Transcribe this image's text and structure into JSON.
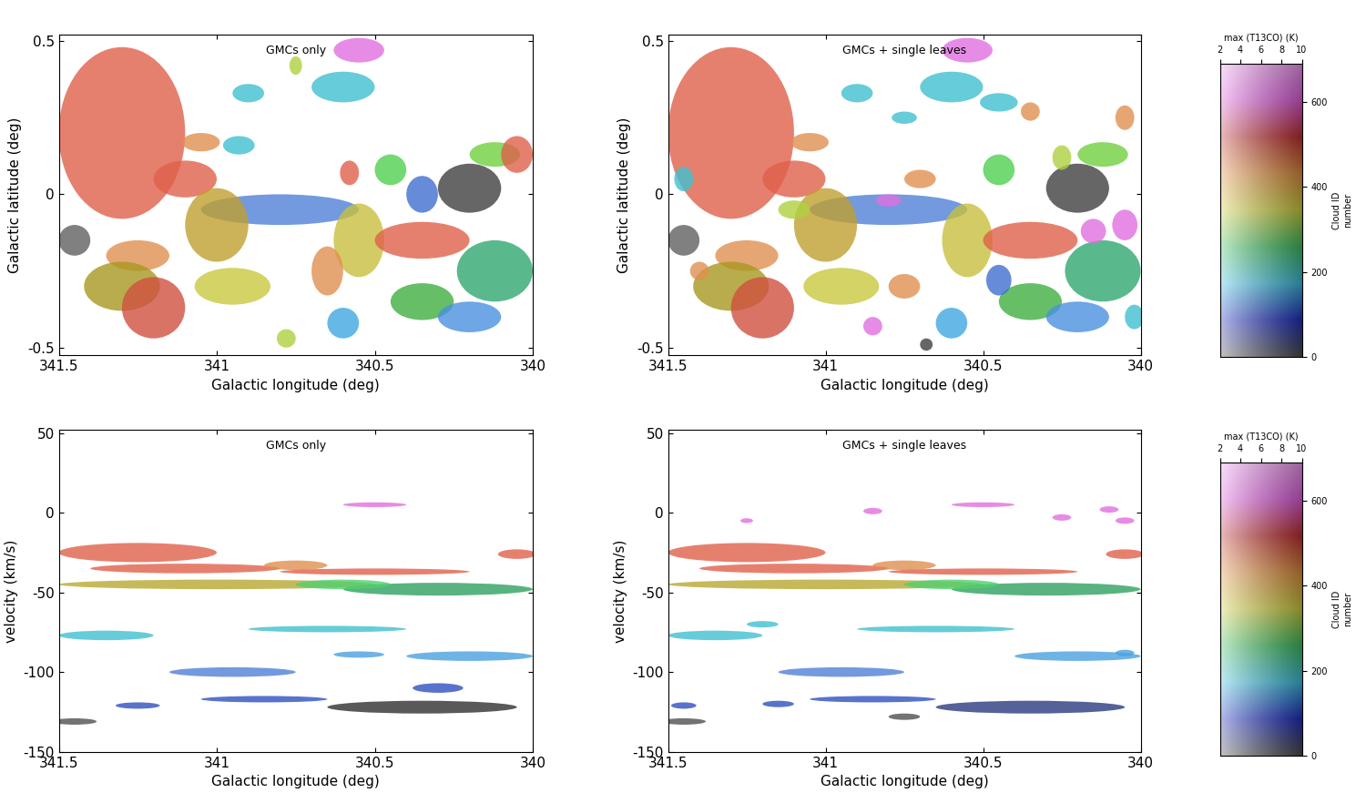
{
  "chart_data": [
    {
      "type": "region",
      "annotation": "GMCs only",
      "xlabel": "Galactic longitude (deg)",
      "ylabel": "Galactic latitude (deg)",
      "xlim": [
        341.5,
        340
      ],
      "ylim": [
        -0.525,
        0.52
      ],
      "xticks": [
        341.5,
        341,
        340.5,
        340
      ],
      "yticks": [
        -0.5,
        0,
        0.5
      ],
      "clouds": [
        {
          "x": 341.3,
          "y": 0.2,
          "dx": 0.2,
          "dy": 0.28,
          "color": "#e0604a"
        },
        {
          "x": 341.1,
          "y": 0.05,
          "dx": 0.1,
          "dy": 0.06,
          "color": "#e0604a"
        },
        {
          "x": 340.55,
          "y": 0.47,
          "dx": 0.08,
          "dy": 0.04,
          "color": "#e070e0"
        },
        {
          "x": 340.6,
          "y": 0.35,
          "dx": 0.1,
          "dy": 0.05,
          "color": "#40c0d0"
        },
        {
          "x": 340.9,
          "y": 0.33,
          "dx": 0.05,
          "dy": 0.03,
          "color": "#40c0d0"
        },
        {
          "x": 340.75,
          "y": 0.42,
          "dx": 0.02,
          "dy": 0.03,
          "color": "#b0d040"
        },
        {
          "x": 341.05,
          "y": 0.17,
          "dx": 0.06,
          "dy": 0.03,
          "color": "#e09050"
        },
        {
          "x": 340.93,
          "y": 0.16,
          "dx": 0.05,
          "dy": 0.03,
          "color": "#40c0d0"
        },
        {
          "x": 340.45,
          "y": 0.08,
          "dx": 0.05,
          "dy": 0.05,
          "color": "#50d050"
        },
        {
          "x": 340.58,
          "y": 0.07,
          "dx": 0.03,
          "dy": 0.04,
          "color": "#e0604a"
        },
        {
          "x": 340.12,
          "y": 0.13,
          "dx": 0.08,
          "dy": 0.04,
          "color": "#70d040"
        },
        {
          "x": 340.05,
          "y": 0.13,
          "dx": 0.05,
          "dy": 0.06,
          "color": "#e0604a"
        },
        {
          "x": 340.35,
          "y": 0.0,
          "dx": 0.05,
          "dy": 0.06,
          "color": "#4070d0"
        },
        {
          "x": 340.2,
          "y": 0.02,
          "dx": 0.1,
          "dy": 0.08,
          "color": "#404040"
        },
        {
          "x": 340.8,
          "y": -0.05,
          "dx": 0.25,
          "dy": 0.05,
          "color": "#5080d8"
        },
        {
          "x": 341.0,
          "y": -0.1,
          "dx": 0.1,
          "dy": 0.12,
          "color": "#c0a030"
        },
        {
          "x": 340.95,
          "y": -0.3,
          "dx": 0.12,
          "dy": 0.06,
          "color": "#c8c840"
        },
        {
          "x": 341.25,
          "y": -0.2,
          "dx": 0.1,
          "dy": 0.05,
          "color": "#e09050"
        },
        {
          "x": 341.3,
          "y": -0.3,
          "dx": 0.12,
          "dy": 0.08,
          "color": "#a89820"
        },
        {
          "x": 341.2,
          "y": -0.37,
          "dx": 0.1,
          "dy": 0.1,
          "color": "#d05040"
        },
        {
          "x": 341.45,
          "y": -0.15,
          "dx": 0.05,
          "dy": 0.05,
          "color": "#606060"
        },
        {
          "x": 340.55,
          "y": -0.15,
          "dx": 0.08,
          "dy": 0.12,
          "color": "#c8c040"
        },
        {
          "x": 340.65,
          "y": -0.25,
          "dx": 0.05,
          "dy": 0.08,
          "color": "#e09050"
        },
        {
          "x": 340.35,
          "y": -0.15,
          "dx": 0.15,
          "dy": 0.06,
          "color": "#e0604a"
        },
        {
          "x": 340.12,
          "y": -0.25,
          "dx": 0.12,
          "dy": 0.1,
          "color": "#30a870"
        },
        {
          "x": 340.35,
          "y": -0.35,
          "dx": 0.1,
          "dy": 0.06,
          "color": "#40b040"
        },
        {
          "x": 340.2,
          "y": -0.4,
          "dx": 0.1,
          "dy": 0.05,
          "color": "#4a90e0"
        },
        {
          "x": 340.6,
          "y": -0.42,
          "dx": 0.05,
          "dy": 0.05,
          "color": "#40a8e0"
        },
        {
          "x": 340.78,
          "y": -0.47,
          "dx": 0.03,
          "dy": 0.03,
          "color": "#b0d040"
        }
      ]
    },
    {
      "type": "region",
      "annotation": "GMCs + single leaves",
      "xlabel": "Galactic longitude (deg)",
      "ylabel": "Galactic latitude (deg)",
      "xlim": [
        341.5,
        340
      ],
      "ylim": [
        -0.525,
        0.52
      ],
      "xticks": [
        341.5,
        341,
        340.5,
        340
      ],
      "yticks": [
        -0.5,
        0,
        0.5
      ],
      "clouds": [
        {
          "x": 341.3,
          "y": 0.2,
          "dx": 0.2,
          "dy": 0.28,
          "color": "#e0604a"
        },
        {
          "x": 341.1,
          "y": 0.05,
          "dx": 0.1,
          "dy": 0.06,
          "color": "#e0604a"
        },
        {
          "x": 340.55,
          "y": 0.47,
          "dx": 0.08,
          "dy": 0.04,
          "color": "#e070e0"
        },
        {
          "x": 340.6,
          "y": 0.35,
          "dx": 0.1,
          "dy": 0.05,
          "color": "#40c0d0"
        },
        {
          "x": 340.9,
          "y": 0.33,
          "dx": 0.05,
          "dy": 0.03,
          "color": "#40c0d0"
        },
        {
          "x": 341.05,
          "y": 0.17,
          "dx": 0.06,
          "dy": 0.03,
          "color": "#e09050"
        },
        {
          "x": 340.45,
          "y": 0.08,
          "dx": 0.05,
          "dy": 0.05,
          "color": "#50d050"
        },
        {
          "x": 340.12,
          "y": 0.13,
          "dx": 0.08,
          "dy": 0.04,
          "color": "#70d040"
        },
        {
          "x": 340.2,
          "y": 0.02,
          "dx": 0.1,
          "dy": 0.08,
          "color": "#404040"
        },
        {
          "x": 340.8,
          "y": -0.05,
          "dx": 0.25,
          "dy": 0.05,
          "color": "#5080d8"
        },
        {
          "x": 341.0,
          "y": -0.1,
          "dx": 0.1,
          "dy": 0.12,
          "color": "#c0a030"
        },
        {
          "x": 340.95,
          "y": -0.3,
          "dx": 0.12,
          "dy": 0.06,
          "color": "#c8c840"
        },
        {
          "x": 341.25,
          "y": -0.2,
          "dx": 0.1,
          "dy": 0.05,
          "color": "#e09050"
        },
        {
          "x": 341.3,
          "y": -0.3,
          "dx": 0.12,
          "dy": 0.08,
          "color": "#a89820"
        },
        {
          "x": 341.2,
          "y": -0.37,
          "dx": 0.1,
          "dy": 0.1,
          "color": "#d05040"
        },
        {
          "x": 341.45,
          "y": -0.15,
          "dx": 0.05,
          "dy": 0.05,
          "color": "#606060"
        },
        {
          "x": 340.55,
          "y": -0.15,
          "dx": 0.08,
          "dy": 0.12,
          "color": "#c8c040"
        },
        {
          "x": 340.35,
          "y": -0.15,
          "dx": 0.15,
          "dy": 0.06,
          "color": "#e0604a"
        },
        {
          "x": 340.12,
          "y": -0.25,
          "dx": 0.12,
          "dy": 0.1,
          "color": "#30a870"
        },
        {
          "x": 340.35,
          "y": -0.35,
          "dx": 0.1,
          "dy": 0.06,
          "color": "#40b040"
        },
        {
          "x": 340.2,
          "y": -0.4,
          "dx": 0.1,
          "dy": 0.05,
          "color": "#4a90e0"
        },
        {
          "x": 340.6,
          "y": -0.42,
          "dx": 0.05,
          "dy": 0.05,
          "color": "#40a8e0"
        },
        {
          "x": 340.45,
          "y": 0.3,
          "dx": 0.06,
          "dy": 0.03,
          "color": "#40c0d0"
        },
        {
          "x": 340.35,
          "y": 0.27,
          "dx": 0.03,
          "dy": 0.03,
          "color": "#e09050"
        },
        {
          "x": 340.75,
          "y": 0.25,
          "dx": 0.04,
          "dy": 0.02,
          "color": "#40c0d0"
        },
        {
          "x": 340.25,
          "y": 0.12,
          "dx": 0.03,
          "dy": 0.04,
          "color": "#b0d040"
        },
        {
          "x": 340.05,
          "y": -0.1,
          "dx": 0.04,
          "dy": 0.05,
          "color": "#e070e0"
        },
        {
          "x": 340.15,
          "y": -0.12,
          "dx": 0.04,
          "dy": 0.04,
          "color": "#e070e0"
        },
        {
          "x": 340.7,
          "y": 0.05,
          "dx": 0.05,
          "dy": 0.03,
          "color": "#e09050"
        },
        {
          "x": 340.8,
          "y": -0.02,
          "dx": 0.04,
          "dy": 0.02,
          "color": "#e070e0"
        },
        {
          "x": 340.75,
          "y": -0.3,
          "dx": 0.05,
          "dy": 0.04,
          "color": "#e09050"
        },
        {
          "x": 340.85,
          "y": -0.43,
          "dx": 0.03,
          "dy": 0.03,
          "color": "#e070e0"
        },
        {
          "x": 341.45,
          "y": 0.05,
          "dx": 0.03,
          "dy": 0.04,
          "color": "#40c0d0"
        },
        {
          "x": 341.4,
          "y": -0.25,
          "dx": 0.03,
          "dy": 0.03,
          "color": "#e09050"
        },
        {
          "x": 340.45,
          "y": -0.28,
          "dx": 0.04,
          "dy": 0.05,
          "color": "#4070d0"
        },
        {
          "x": 340.02,
          "y": -0.4,
          "dx": 0.03,
          "dy": 0.04,
          "color": "#40c0d0"
        },
        {
          "x": 341.1,
          "y": -0.05,
          "dx": 0.05,
          "dy": 0.03,
          "color": "#b0d040"
        },
        {
          "x": 340.05,
          "y": 0.25,
          "dx": 0.03,
          "dy": 0.04,
          "color": "#e09050"
        },
        {
          "x": 340.68,
          "y": -0.49,
          "dx": 0.02,
          "dy": 0.02,
          "color": "#404040"
        }
      ]
    },
    {
      "type": "region",
      "annotation": "GMCs only",
      "xlabel": "Galactic longitude (deg)",
      "ylabel": "velocity (km/s)",
      "xlim": [
        341.5,
        340
      ],
      "ylim": [
        -150,
        52
      ],
      "xticks": [
        341.5,
        341,
        340.5,
        340
      ],
      "yticks": [
        -150,
        -100,
        -50,
        0,
        50
      ],
      "clouds": [
        {
          "x": 340.5,
          "y": 5,
          "dx": 0.1,
          "dy": 1.5,
          "color": "#e070e0"
        },
        {
          "x": 341.25,
          "y": -25,
          "dx": 0.25,
          "dy": 6,
          "color": "#e0604a"
        },
        {
          "x": 341.1,
          "y": -35,
          "dx": 0.3,
          "dy": 3,
          "color": "#e0604a"
        },
        {
          "x": 340.05,
          "y": -26,
          "dx": 0.06,
          "dy": 3,
          "color": "#e0604a"
        },
        {
          "x": 340.75,
          "y": -33,
          "dx": 0.1,
          "dy": 3,
          "color": "#e09050"
        },
        {
          "x": 340.5,
          "y": -37,
          "dx": 0.3,
          "dy": 2,
          "color": "#e0604a"
        },
        {
          "x": 341.0,
          "y": -45,
          "dx": 0.5,
          "dy": 3,
          "color": "#b8a830"
        },
        {
          "x": 340.3,
          "y": -48,
          "dx": 0.3,
          "dy": 4,
          "color": "#30a060"
        },
        {
          "x": 340.6,
          "y": -45,
          "dx": 0.15,
          "dy": 3,
          "color": "#50d070"
        },
        {
          "x": 341.35,
          "y": -77,
          "dx": 0.15,
          "dy": 3,
          "color": "#40c0d0"
        },
        {
          "x": 340.65,
          "y": -73,
          "dx": 0.25,
          "dy": 2,
          "color": "#40c0d0"
        },
        {
          "x": 340.2,
          "y": -90,
          "dx": 0.2,
          "dy": 3,
          "color": "#4aa0e0"
        },
        {
          "x": 340.55,
          "y": -89,
          "dx": 0.08,
          "dy": 2,
          "color": "#4aa0e0"
        },
        {
          "x": 340.95,
          "y": -100,
          "dx": 0.2,
          "dy": 3,
          "color": "#5080d8"
        },
        {
          "x": 340.85,
          "y": -117,
          "dx": 0.2,
          "dy": 2,
          "color": "#3050c0"
        },
        {
          "x": 341.25,
          "y": -121,
          "dx": 0.07,
          "dy": 2,
          "color": "#3050c0"
        },
        {
          "x": 340.35,
          "y": -122,
          "dx": 0.3,
          "dy": 4,
          "color": "#303030"
        },
        {
          "x": 340.3,
          "y": -110,
          "dx": 0.08,
          "dy": 3,
          "color": "#3050c0"
        },
        {
          "x": 341.45,
          "y": -131,
          "dx": 0.07,
          "dy": 2,
          "color": "#505050"
        }
      ]
    },
    {
      "type": "region",
      "annotation": "GMCs + single leaves",
      "xlabel": "Galactic longitude (deg)",
      "ylabel": "velocity (km/s)",
      "xlim": [
        341.5,
        340
      ],
      "ylim": [
        -150,
        52
      ],
      "xticks": [
        341.5,
        341,
        340.5,
        340
      ],
      "yticks": [
        -150,
        -100,
        -50,
        0,
        50
      ],
      "clouds": [
        {
          "x": 340.5,
          "y": 5,
          "dx": 0.1,
          "dy": 1.5,
          "color": "#e070e0"
        },
        {
          "x": 341.25,
          "y": -25,
          "dx": 0.25,
          "dy": 6,
          "color": "#e0604a"
        },
        {
          "x": 341.1,
          "y": -35,
          "dx": 0.3,
          "dy": 3,
          "color": "#e0604a"
        },
        {
          "x": 340.05,
          "y": -26,
          "dx": 0.06,
          "dy": 3,
          "color": "#e0604a"
        },
        {
          "x": 340.75,
          "y": -33,
          "dx": 0.1,
          "dy": 3,
          "color": "#e09050"
        },
        {
          "x": 340.5,
          "y": -37,
          "dx": 0.3,
          "dy": 2,
          "color": "#e0604a"
        },
        {
          "x": 341.0,
          "y": -45,
          "dx": 0.5,
          "dy": 3,
          "color": "#b8a830"
        },
        {
          "x": 340.3,
          "y": -48,
          "dx": 0.3,
          "dy": 4,
          "color": "#30a060"
        },
        {
          "x": 340.6,
          "y": -45,
          "dx": 0.15,
          "dy": 3,
          "color": "#50d070"
        },
        {
          "x": 341.35,
          "y": -77,
          "dx": 0.15,
          "dy": 3,
          "color": "#40c0d0"
        },
        {
          "x": 340.65,
          "y": -73,
          "dx": 0.25,
          "dy": 2,
          "color": "#40c0d0"
        },
        {
          "x": 340.2,
          "y": -90,
          "dx": 0.2,
          "dy": 3,
          "color": "#4aa0e0"
        },
        {
          "x": 340.95,
          "y": -100,
          "dx": 0.2,
          "dy": 3,
          "color": "#5080d8"
        },
        {
          "x": 340.85,
          "y": -117,
          "dx": 0.2,
          "dy": 2,
          "color": "#3050c0"
        },
        {
          "x": 340.35,
          "y": -122,
          "dx": 0.3,
          "dy": 4,
          "color": "#2a3a80"
        },
        {
          "x": 341.45,
          "y": -131,
          "dx": 0.07,
          "dy": 2,
          "color": "#505050"
        },
        {
          "x": 340.85,
          "y": 1,
          "dx": 0.03,
          "dy": 2,
          "color": "#e070e0"
        },
        {
          "x": 340.1,
          "y": 2,
          "dx": 0.03,
          "dy": 2,
          "color": "#e070e0"
        },
        {
          "x": 340.05,
          "y": -5,
          "dx": 0.03,
          "dy": 2,
          "color": "#e070e0"
        },
        {
          "x": 340.25,
          "y": -3,
          "dx": 0.03,
          "dy": 2,
          "color": "#e070e0"
        },
        {
          "x": 341.25,
          "y": -5,
          "dx": 0.02,
          "dy": 1.5,
          "color": "#e070e0"
        },
        {
          "x": 341.2,
          "y": -70,
          "dx": 0.05,
          "dy": 2,
          "color": "#40c0d0"
        },
        {
          "x": 341.45,
          "y": -121,
          "dx": 0.04,
          "dy": 2,
          "color": "#3050c0"
        },
        {
          "x": 341.15,
          "y": -120,
          "dx": 0.05,
          "dy": 2,
          "color": "#3050c0"
        },
        {
          "x": 340.75,
          "y": -128,
          "dx": 0.05,
          "dy": 2,
          "color": "#505050"
        },
        {
          "x": 340.05,
          "y": -88,
          "dx": 0.03,
          "dy": 2,
          "color": "#4aa0e0"
        }
      ]
    },
    {
      "type": "colorbar",
      "xlabel": "max (T13CO) (K)",
      "ylabel": "Cloud ID\nnumber",
      "xlim": [
        2,
        10
      ],
      "xticks": [
        2,
        4,
        6,
        8,
        10
      ],
      "ylim": [
        0,
        690
      ],
      "yticks": [
        0,
        200,
        400,
        600
      ]
    },
    {
      "type": "colorbar",
      "xlabel": "max (T13CO) (K)",
      "ylabel": "Cloud ID\nnumber",
      "xlim": [
        2,
        10
      ],
      "xticks": [
        2,
        4,
        6,
        8,
        10
      ],
      "ylim": [
        0,
        690
      ],
      "yticks": [
        0,
        200,
        400,
        600
      ]
    }
  ]
}
